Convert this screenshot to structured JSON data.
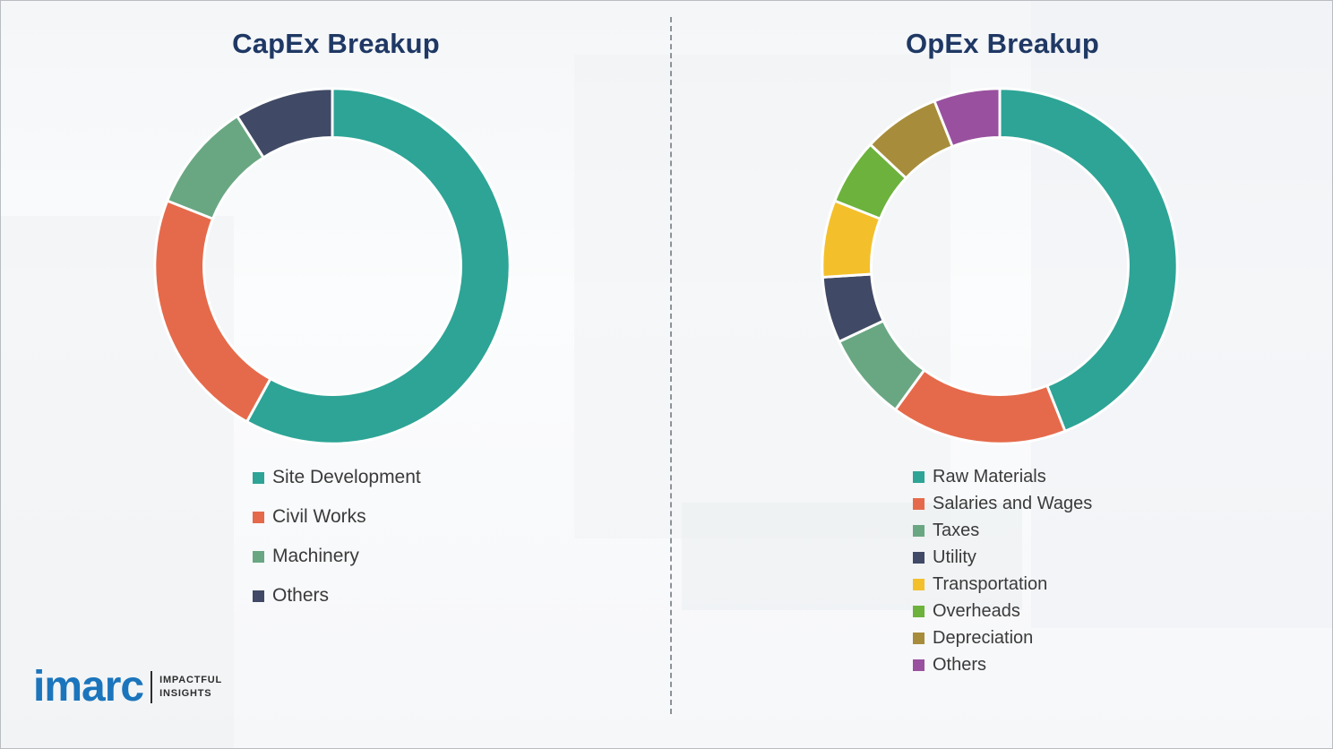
{
  "page": {
    "background_color": "#fbfcfd"
  },
  "divider": {
    "style": "vertical-dashed",
    "color": "#8d9298"
  },
  "logo": {
    "brand": "imarc",
    "brand_color": "#1b75bc",
    "tagline_line1": "IMPACTFUL",
    "tagline_line2": "INSIGHTS"
  },
  "chart_data": [
    {
      "type": "pie",
      "subtype": "donut",
      "title": "CapEx Breakup",
      "title_color": "#1f3864",
      "start_angle_deg": 0,
      "direction": "clockwise",
      "legend_position": "bottom-left",
      "labels": [
        "Site Development",
        "Civil Works",
        "Machinery",
        "Others"
      ],
      "values": [
        58,
        23,
        10,
        9
      ],
      "colors": [
        "#2da496",
        "#e56a4b",
        "#69a783",
        "#404a66"
      ],
      "value_units": "percent-estimated"
    },
    {
      "type": "pie",
      "subtype": "donut",
      "title": "OpEx Breakup",
      "title_color": "#1f3864",
      "start_angle_deg": 0,
      "direction": "clockwise",
      "legend_position": "bottom-left",
      "labels": [
        "Raw Materials",
        "Salaries and Wages",
        "Taxes",
        "Utility",
        "Transportation",
        "Overheads",
        "Depreciation",
        "Others"
      ],
      "values": [
        44,
        16,
        8,
        6,
        7,
        6,
        7,
        6
      ],
      "colors": [
        "#2da496",
        "#e56a4b",
        "#69a783",
        "#404a66",
        "#f3c02c",
        "#6cb23c",
        "#a78d3b",
        "#99519f"
      ],
      "value_units": "percent-estimated"
    }
  ]
}
